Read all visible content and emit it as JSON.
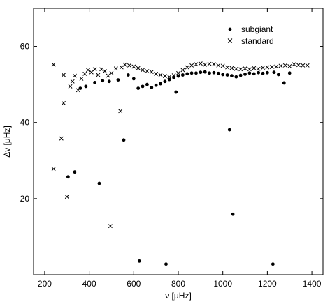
{
  "chart_data": {
    "type": "scatter",
    "xlabel": "ν [μHz]",
    "ylabel": "Δν [μHz]",
    "xlim": [
      150,
      1450
    ],
    "ylim": [
      0,
      70
    ],
    "xticks": [
      200,
      400,
      600,
      800,
      1000,
      1200,
      1400
    ],
    "yticks": [
      20,
      40,
      60
    ],
    "grid": false,
    "legend_position": "top-right",
    "series": [
      {
        "name": "subgiant",
        "marker": "dot",
        "points": [
          [
            305,
            25.7
          ],
          [
            335,
            27.0
          ],
          [
            445,
            24.0
          ],
          [
            555,
            35.4
          ],
          [
            625,
            3.6
          ],
          [
            745,
            2.8
          ],
          [
            1030,
            38.1
          ],
          [
            1045,
            15.9
          ],
          [
            1225,
            2.8
          ],
          [
            360,
            49.0
          ],
          [
            385,
            49.5
          ],
          [
            425,
            50.5
          ],
          [
            460,
            51.0
          ],
          [
            490,
            50.8
          ],
          [
            530,
            51.2
          ],
          [
            575,
            52.5
          ],
          [
            600,
            51.5
          ],
          [
            620,
            49.0
          ],
          [
            640,
            49.5
          ],
          [
            660,
            50.0
          ],
          [
            680,
            49.2
          ],
          [
            700,
            49.8
          ],
          [
            720,
            50.2
          ],
          [
            740,
            50.8
          ],
          [
            760,
            51.3
          ],
          [
            780,
            51.8
          ],
          [
            790,
            48.0
          ],
          [
            800,
            52.2
          ],
          [
            820,
            52.5
          ],
          [
            840,
            52.8
          ],
          [
            860,
            53.0
          ],
          [
            880,
            53.0
          ],
          [
            900,
            53.2
          ],
          [
            920,
            53.3
          ],
          [
            940,
            53.0
          ],
          [
            960,
            53.1
          ],
          [
            980,
            52.9
          ],
          [
            1000,
            52.6
          ],
          [
            1020,
            52.5
          ],
          [
            1040,
            52.3
          ],
          [
            1060,
            52.0
          ],
          [
            1080,
            52.4
          ],
          [
            1100,
            52.7
          ],
          [
            1120,
            53.0
          ],
          [
            1140,
            52.8
          ],
          [
            1160,
            53.1
          ],
          [
            1180,
            52.9
          ],
          [
            1200,
            53.1
          ],
          [
            1230,
            53.2
          ],
          [
            1250,
            52.6
          ],
          [
            1275,
            50.4
          ],
          [
            1300,
            53.0
          ]
        ]
      },
      {
        "name": "standard",
        "marker": "x",
        "points": [
          [
            240,
            55.2
          ],
          [
            240,
            27.8
          ],
          [
            275,
            35.8
          ],
          [
            285,
            45.1
          ],
          [
            300,
            20.5
          ],
          [
            495,
            12.8
          ],
          [
            540,
            43.0
          ],
          [
            285,
            52.5
          ],
          [
            315,
            49.5
          ],
          [
            325,
            50.8
          ],
          [
            335,
            52.3
          ],
          [
            350,
            48.5
          ],
          [
            365,
            51.5
          ],
          [
            380,
            52.8
          ],
          [
            395,
            53.8
          ],
          [
            410,
            53.2
          ],
          [
            425,
            54.0
          ],
          [
            440,
            52.5
          ],
          [
            455,
            54.0
          ],
          [
            470,
            53.5
          ],
          [
            485,
            52.3
          ],
          [
            500,
            53.0
          ],
          [
            520,
            54.2
          ],
          [
            545,
            54.5
          ],
          [
            560,
            55.2
          ],
          [
            580,
            55.0
          ],
          [
            600,
            54.7
          ],
          [
            620,
            54.3
          ],
          [
            640,
            53.8
          ],
          [
            660,
            53.5
          ],
          [
            680,
            53.3
          ],
          [
            700,
            52.8
          ],
          [
            720,
            52.5
          ],
          [
            740,
            52.2
          ],
          [
            760,
            52.0
          ],
          [
            780,
            52.4
          ],
          [
            800,
            53.0
          ],
          [
            820,
            53.8
          ],
          [
            840,
            54.5
          ],
          [
            860,
            55.0
          ],
          [
            880,
            55.3
          ],
          [
            900,
            55.5
          ],
          [
            920,
            55.2
          ],
          [
            940,
            55.4
          ],
          [
            960,
            55.3
          ],
          [
            980,
            55.0
          ],
          [
            1000,
            54.9
          ],
          [
            1020,
            54.5
          ],
          [
            1040,
            54.3
          ],
          [
            1060,
            54.1
          ],
          [
            1080,
            54.0
          ],
          [
            1100,
            54.2
          ],
          [
            1120,
            54.0
          ],
          [
            1140,
            54.3
          ],
          [
            1160,
            54.1
          ],
          [
            1180,
            54.4
          ],
          [
            1200,
            54.5
          ],
          [
            1220,
            54.6
          ],
          [
            1240,
            54.7
          ],
          [
            1260,
            54.9
          ],
          [
            1280,
            55.0
          ],
          [
            1300,
            54.8
          ],
          [
            1320,
            55.3
          ],
          [
            1340,
            55.1
          ],
          [
            1360,
            55.0
          ],
          [
            1380,
            55.0
          ]
        ]
      }
    ]
  }
}
